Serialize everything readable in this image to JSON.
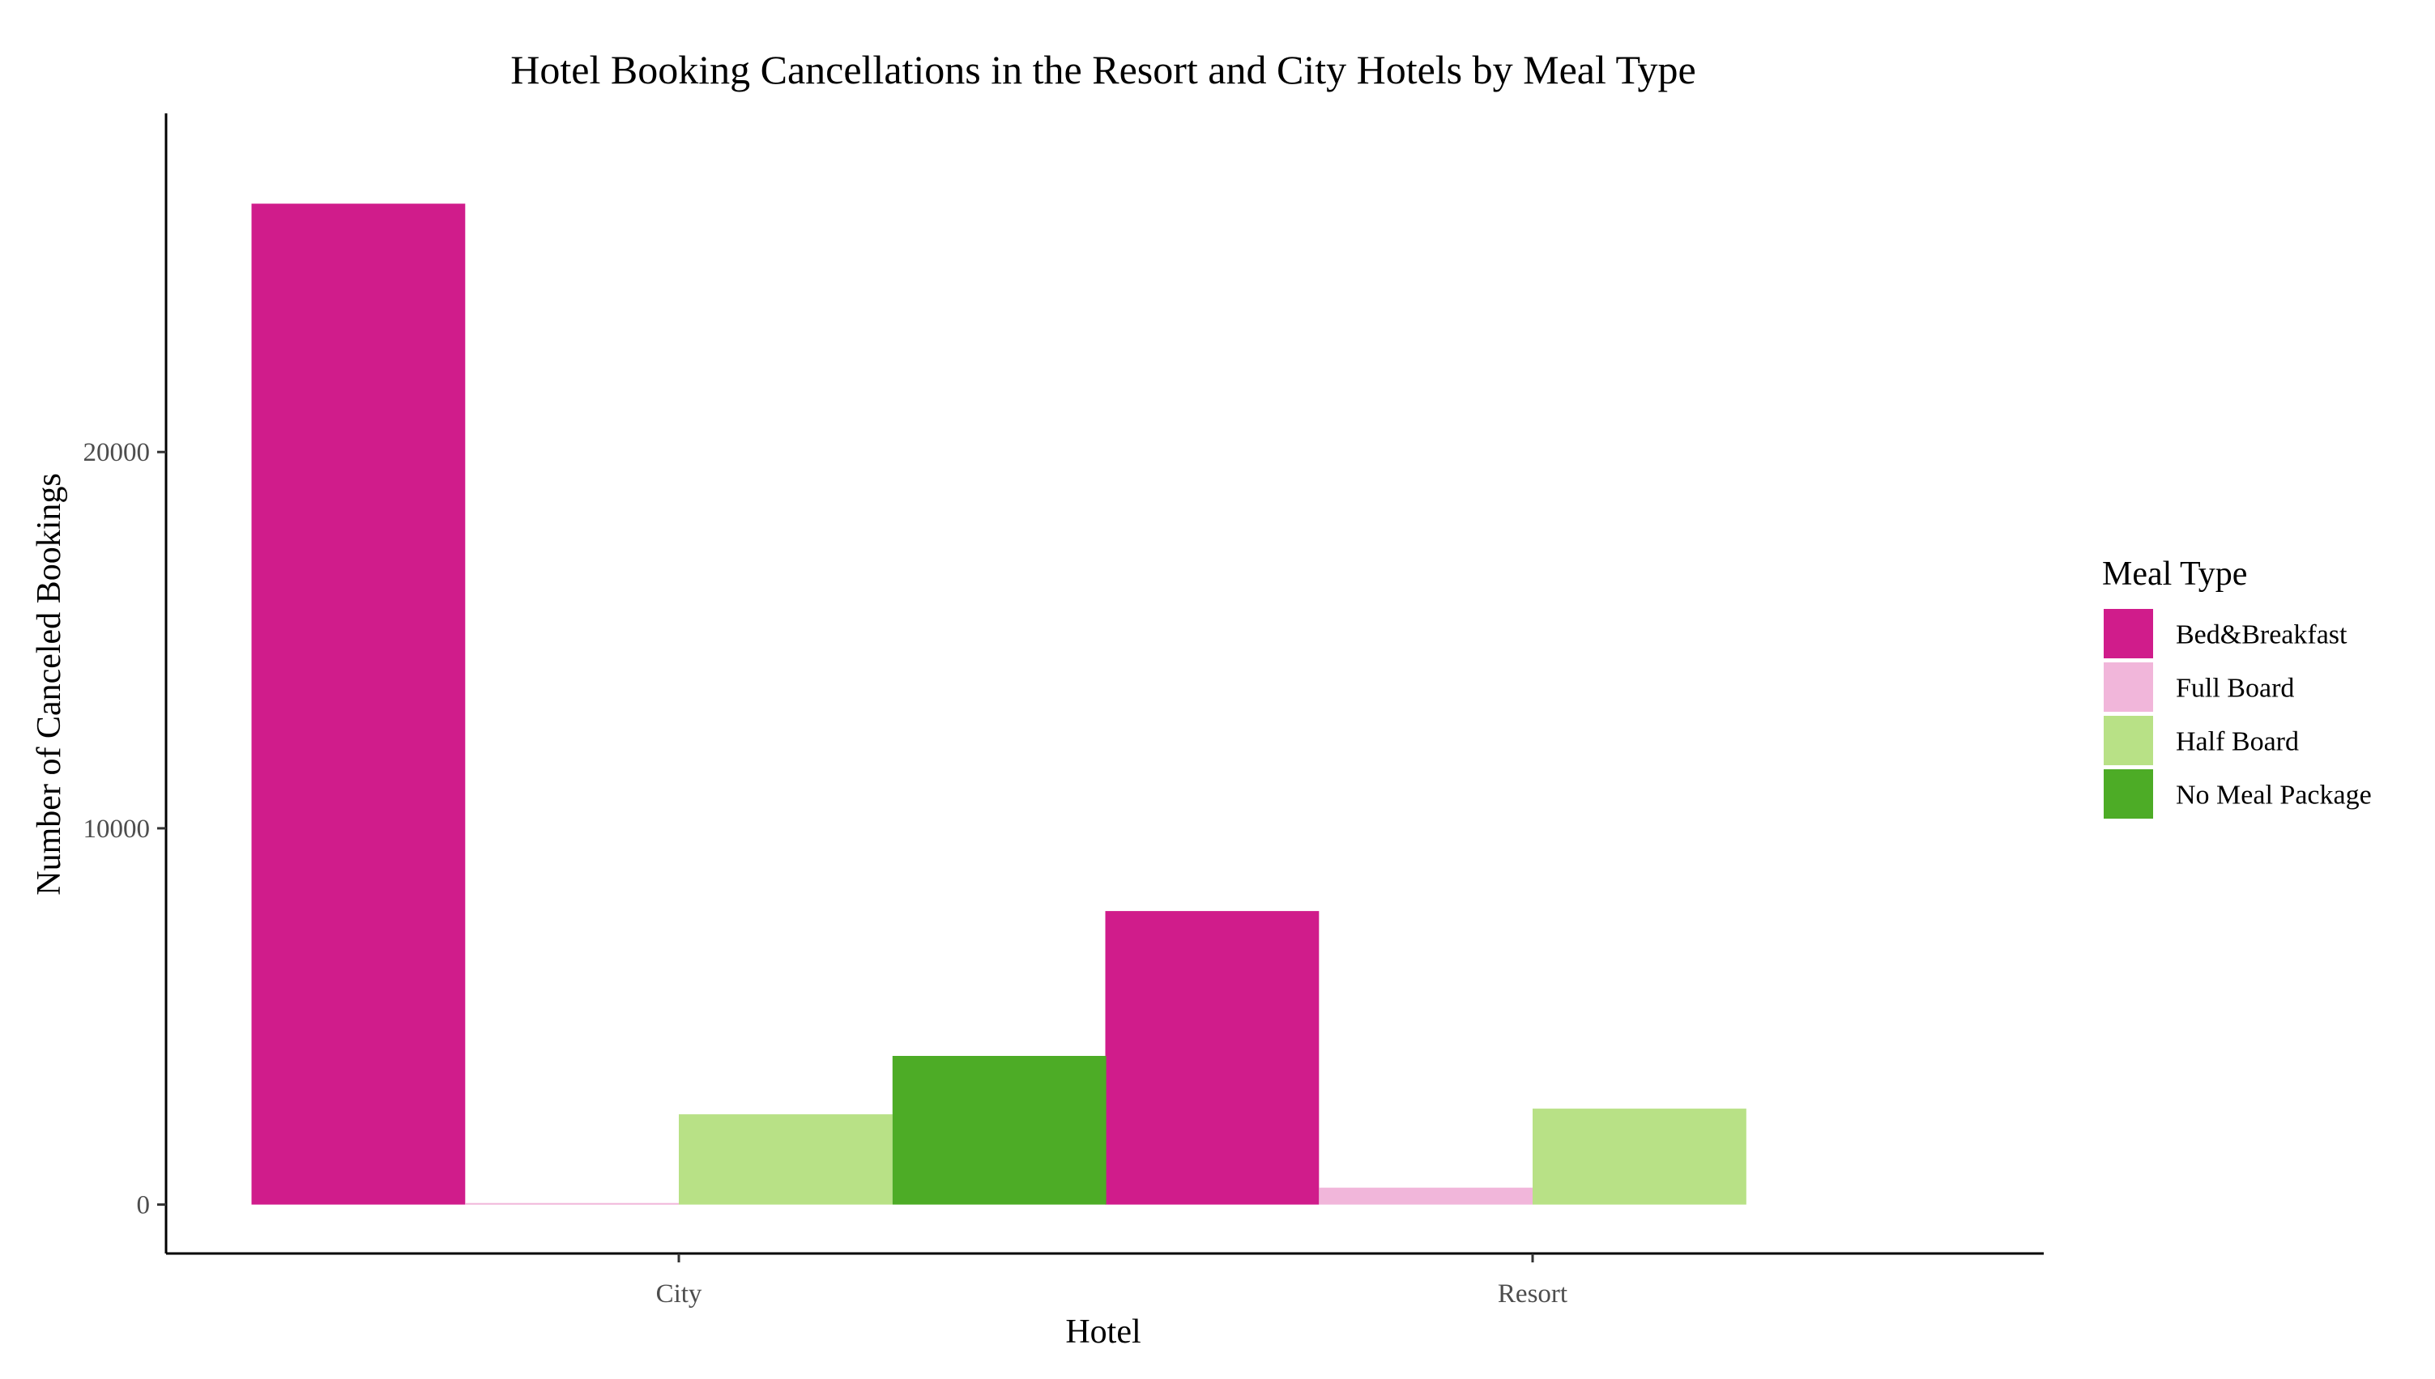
{
  "chart_data": {
    "type": "bar",
    "title": "Hotel Booking Cancellations in the Resort and City Hotels by Meal Type",
    "xlabel": "Hotel",
    "ylabel": "Number of Canceled Bookings",
    "categories": [
      "City",
      "Resort"
    ],
    "series": [
      {
        "name": "Bed&Breakfast",
        "color": "#d01c8b",
        "values": [
          26600,
          7800
        ]
      },
      {
        "name": "Full Board",
        "color": "#f1b6da",
        "values": [
          40,
          450
        ]
      },
      {
        "name": "Half Board",
        "color": "#b8e186",
        "values": [
          2400,
          2550
        ]
      },
      {
        "name": "No Meal Package",
        "color": "#4dac26",
        "values": [
          3950,
          0
        ]
      }
    ],
    "yticks": [
      0,
      10000,
      20000
    ],
    "ytick_labels": [
      "0",
      "10000",
      "20000"
    ],
    "ylim": [
      -1300,
      29000
    ],
    "grid": false,
    "legend": {
      "title": "Meal Type",
      "position": "right"
    }
  }
}
